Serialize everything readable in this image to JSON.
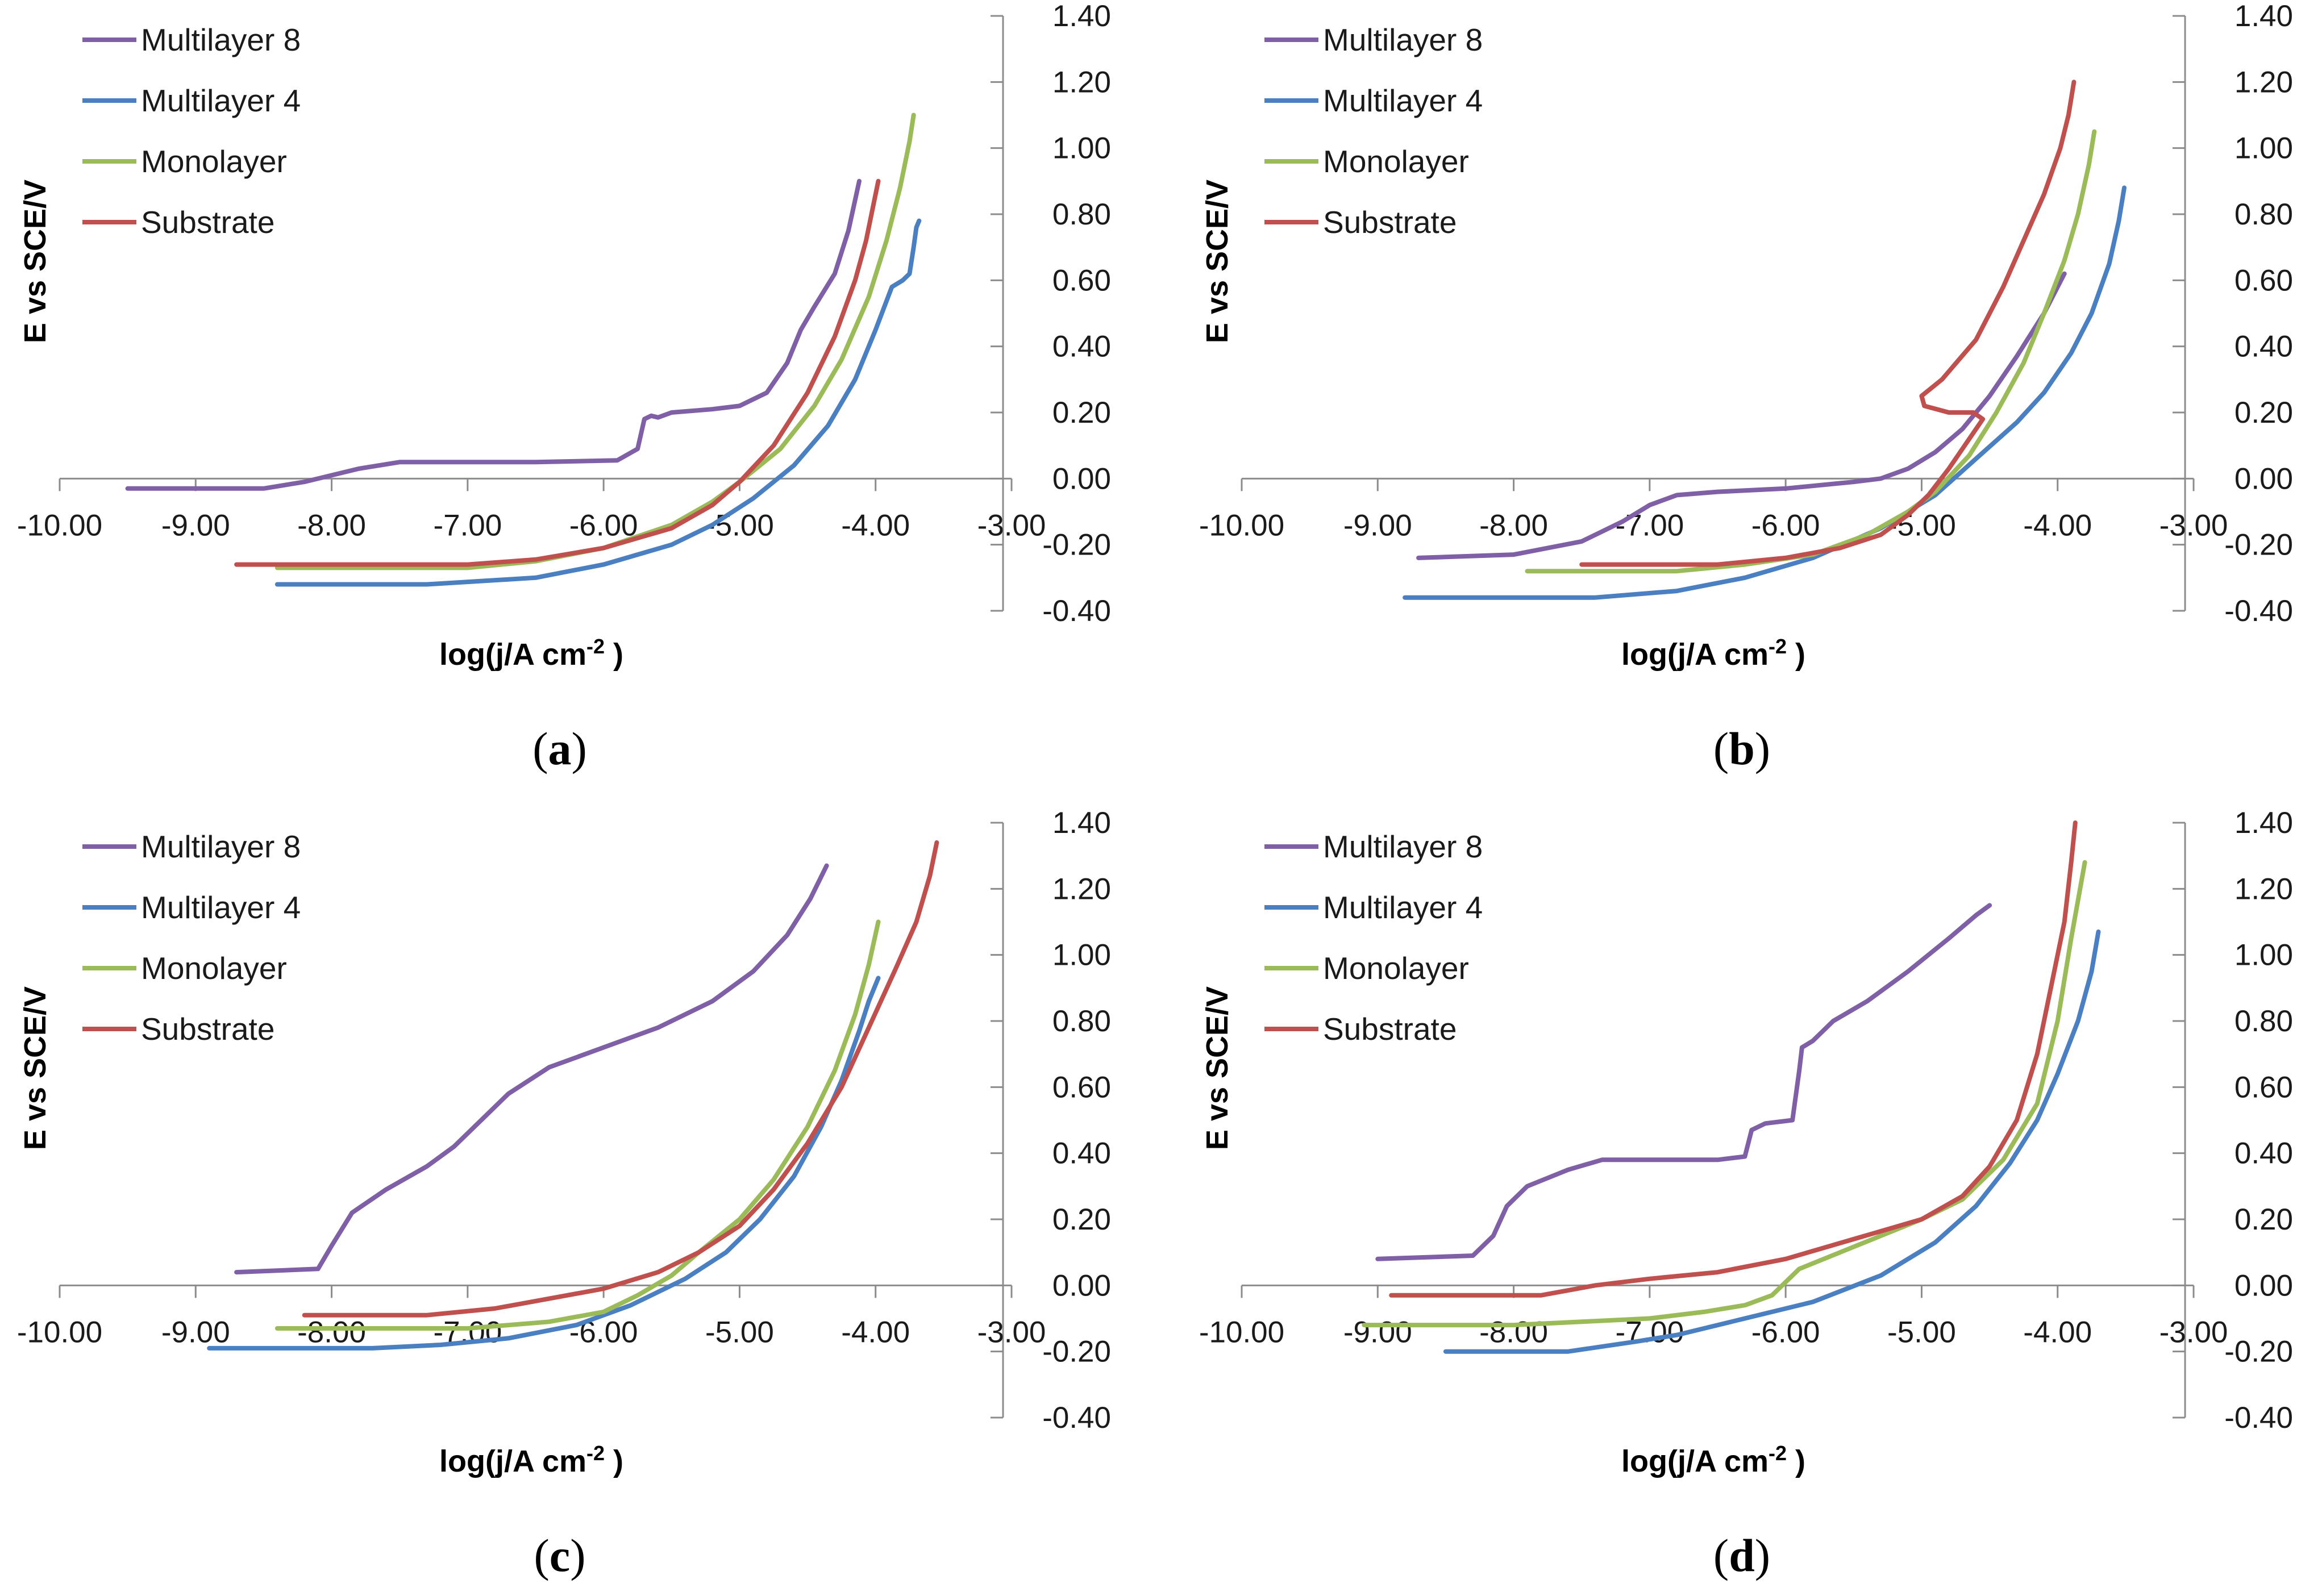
{
  "figure": {
    "series_names": [
      "Multilayer 8",
      "Multilayer 4",
      "Monolayer",
      "Substrate"
    ],
    "series_colors": {
      "Multilayer 8": "#7f5fa6",
      "Multilayer 4": "#4a7fc1",
      "Monolayer": "#9bbb59",
      "Substrate": "#c0504d"
    }
  },
  "chart_data": [
    {
      "type": "line",
      "panel_label": "a",
      "xlabel": "log(j/A cm",
      "xlabel_sup": "-2",
      "xlabel_close": " )",
      "ylabel": "E vs SCE/V",
      "xlim": [
        -10,
        -3
      ],
      "ylim": [
        -0.4,
        1.4
      ],
      "x_ticks": [
        "-10.00",
        "-9.00",
        "-8.00",
        "-7.00",
        "-6.00",
        "-5.00",
        "-4.00",
        "-3.00"
      ],
      "y_ticks": [
        "-0.40",
        "-0.20",
        "0.00",
        "0.20",
        "0.40",
        "0.60",
        "0.80",
        "1.00",
        "1.20",
        "1.40"
      ],
      "legend": [
        "Multilayer 8",
        "Multilayer 4",
        "Monolayer",
        "Substrate"
      ],
      "series": [
        {
          "name": "Multilayer 8",
          "x": [
            -9.5,
            -8.5,
            -8.2,
            -7.8,
            -7.5,
            -6.5,
            -5.9,
            -5.75,
            -5.7,
            -5.65,
            -5.6,
            -5.5,
            -5.2,
            -5.0,
            -4.8,
            -4.65,
            -4.55,
            -4.45,
            -4.3,
            -4.2,
            -4.12
          ],
          "y": [
            -0.03,
            -0.03,
            -0.01,
            0.03,
            0.05,
            0.05,
            0.055,
            0.09,
            0.18,
            0.19,
            0.185,
            0.2,
            0.21,
            0.22,
            0.26,
            0.35,
            0.45,
            0.52,
            0.62,
            0.75,
            0.9
          ]
        },
        {
          "name": "Multilayer 4",
          "x": [
            -8.4,
            -7.3,
            -6.5,
            -6.0,
            -5.5,
            -5.2,
            -4.9,
            -4.6,
            -4.35,
            -4.15,
            -4.0,
            -3.88,
            -3.8,
            -3.75,
            -3.72,
            -3.7,
            -3.68
          ],
          "y": [
            -0.32,
            -0.32,
            -0.3,
            -0.26,
            -0.2,
            -0.14,
            -0.06,
            0.04,
            0.16,
            0.3,
            0.45,
            0.58,
            0.6,
            0.62,
            0.7,
            0.76,
            0.78
          ]
        },
        {
          "name": "Monolayer",
          "x": [
            -8.4,
            -7.0,
            -6.5,
            -6.0,
            -5.5,
            -5.2,
            -5.0,
            -4.7,
            -4.45,
            -4.25,
            -4.05,
            -3.92,
            -3.82,
            -3.75,
            -3.72
          ],
          "y": [
            -0.27,
            -0.27,
            -0.25,
            -0.21,
            -0.14,
            -0.07,
            -0.01,
            0.09,
            0.22,
            0.36,
            0.55,
            0.72,
            0.88,
            1.02,
            1.1
          ]
        },
        {
          "name": "Substrate",
          "x": [
            -8.7,
            -7.0,
            -6.5,
            -6.0,
            -5.5,
            -5.2,
            -5.0,
            -4.75,
            -4.5,
            -4.3,
            -4.15,
            -4.07,
            -4.02,
            -3.98
          ],
          "y": [
            -0.26,
            -0.26,
            -0.245,
            -0.21,
            -0.15,
            -0.08,
            -0.01,
            0.1,
            0.26,
            0.43,
            0.6,
            0.72,
            0.82,
            0.9
          ]
        }
      ]
    },
    {
      "type": "line",
      "panel_label": "b",
      "xlabel": "log(j/A cm",
      "xlabel_sup": "-2",
      "xlabel_close": " )",
      "ylabel": "E vs SCE/V",
      "xlim": [
        -10,
        -3
      ],
      "ylim": [
        -0.4,
        1.4
      ],
      "x_ticks": [
        "-10.00",
        "-9.00",
        "-8.00",
        "-7.00",
        "-6.00",
        "-5.00",
        "-4.00",
        "-3.00"
      ],
      "y_ticks": [
        "-0.40",
        "-0.20",
        "0.00",
        "0.20",
        "0.40",
        "0.60",
        "0.80",
        "1.00",
        "1.20",
        "1.40"
      ],
      "legend": [
        "Multilayer 8",
        "Multilayer 4",
        "Monolayer",
        "Substrate"
      ],
      "series": [
        {
          "name": "Multilayer 8",
          "x": [
            -8.7,
            -8.0,
            -7.5,
            -7.2,
            -7.0,
            -6.8,
            -6.5,
            -6.0,
            -5.5,
            -5.3,
            -5.1,
            -4.9,
            -4.7,
            -4.5,
            -4.3,
            -4.1,
            -3.95
          ],
          "y": [
            -0.24,
            -0.23,
            -0.19,
            -0.13,
            -0.08,
            -0.05,
            -0.04,
            -0.03,
            -0.01,
            0.0,
            0.03,
            0.08,
            0.15,
            0.25,
            0.37,
            0.5,
            0.62
          ]
        },
        {
          "name": "Multilayer 4",
          "x": [
            -8.8,
            -7.4,
            -6.8,
            -6.3,
            -5.8,
            -5.3,
            -4.9,
            -4.6,
            -4.3,
            -4.1,
            -3.9,
            -3.75,
            -3.62,
            -3.55,
            -3.51
          ],
          "y": [
            -0.36,
            -0.36,
            -0.34,
            -0.3,
            -0.24,
            -0.15,
            -0.05,
            0.06,
            0.17,
            0.26,
            0.38,
            0.5,
            0.65,
            0.78,
            0.88
          ]
        },
        {
          "name": "Monolayer",
          "x": [
            -7.9,
            -6.8,
            -6.3,
            -5.8,
            -5.4,
            -5.1,
            -4.9,
            -4.65,
            -4.45,
            -4.25,
            -4.1,
            -3.95,
            -3.85,
            -3.77,
            -3.73
          ],
          "y": [
            -0.28,
            -0.28,
            -0.26,
            -0.23,
            -0.17,
            -0.1,
            -0.04,
            0.07,
            0.2,
            0.35,
            0.5,
            0.66,
            0.8,
            0.95,
            1.05
          ]
        },
        {
          "name": "Substrate",
          "x": [
            -7.5,
            -6.5,
            -6.0,
            -5.6,
            -5.3,
            -5.1,
            -4.95,
            -4.8,
            -4.65,
            -4.55,
            -4.62,
            -4.8,
            -4.98,
            -5.0,
            -4.85,
            -4.6,
            -4.4,
            -4.25,
            -4.1,
            -3.98,
            -3.92,
            -3.88
          ],
          "y": [
            -0.26,
            -0.26,
            -0.24,
            -0.21,
            -0.17,
            -0.11,
            -0.05,
            0.03,
            0.12,
            0.18,
            0.2,
            0.2,
            0.22,
            0.25,
            0.3,
            0.42,
            0.58,
            0.72,
            0.86,
            1.0,
            1.1,
            1.2
          ]
        }
      ]
    },
    {
      "type": "line",
      "panel_label": "c",
      "xlabel": "log(j/A cm",
      "xlabel_sup": "-2",
      "xlabel_close": " )",
      "ylabel": "E vs SCE/V",
      "xlim": [
        -10,
        -3
      ],
      "ylim": [
        -0.4,
        1.4
      ],
      "x_ticks": [
        "-10.00",
        "-9.00",
        "-8.00",
        "-7.00",
        "-6.00",
        "-5.00",
        "-4.00",
        "-3.00"
      ],
      "y_ticks": [
        "-0.40",
        "-0.20",
        "0.00",
        "0.20",
        "0.40",
        "0.60",
        "0.80",
        "1.00",
        "1.20",
        "1.40"
      ],
      "legend": [
        "Multilayer 8",
        "Multilayer 4",
        "Monolayer",
        "Substrate"
      ],
      "series": [
        {
          "name": "Multilayer 8",
          "x": [
            -8.7,
            -8.1,
            -8.0,
            -7.85,
            -7.6,
            -7.3,
            -7.1,
            -6.9,
            -6.7,
            -6.4,
            -6.0,
            -5.6,
            -5.2,
            -4.9,
            -4.65,
            -4.48,
            -4.36
          ],
          "y": [
            0.04,
            0.05,
            0.12,
            0.22,
            0.29,
            0.36,
            0.42,
            0.5,
            0.58,
            0.66,
            0.72,
            0.78,
            0.86,
            0.95,
            1.06,
            1.17,
            1.27
          ]
        },
        {
          "name": "Multilayer 4",
          "x": [
            -8.9,
            -7.7,
            -7.2,
            -6.7,
            -6.2,
            -5.8,
            -5.4,
            -5.1,
            -4.85,
            -4.6,
            -4.4,
            -4.25,
            -4.12,
            -4.05,
            -3.98
          ],
          "y": [
            -0.19,
            -0.19,
            -0.18,
            -0.16,
            -0.12,
            -0.06,
            0.02,
            0.1,
            0.2,
            0.33,
            0.48,
            0.62,
            0.77,
            0.86,
            0.93
          ]
        },
        {
          "name": "Monolayer",
          "x": [
            -8.4,
            -7.0,
            -6.4,
            -6.0,
            -5.75,
            -5.5,
            -5.3,
            -5.0,
            -4.75,
            -4.5,
            -4.3,
            -4.15,
            -4.05,
            -3.98
          ],
          "y": [
            -0.13,
            -0.13,
            -0.11,
            -0.08,
            -0.03,
            0.03,
            0.1,
            0.2,
            0.32,
            0.48,
            0.65,
            0.82,
            0.97,
            1.1
          ]
        },
        {
          "name": "Substrate",
          "x": [
            -8.2,
            -7.3,
            -6.8,
            -6.4,
            -6.0,
            -5.6,
            -5.3,
            -5.0,
            -4.75,
            -4.5,
            -4.25,
            -4.05,
            -3.85,
            -3.7,
            -3.6,
            -3.55
          ],
          "y": [
            -0.09,
            -0.09,
            -0.07,
            -0.04,
            -0.01,
            0.04,
            0.1,
            0.18,
            0.29,
            0.43,
            0.6,
            0.78,
            0.96,
            1.1,
            1.24,
            1.34
          ]
        }
      ]
    },
    {
      "type": "line",
      "panel_label": "d",
      "xlabel": "log(j/A cm",
      "xlabel_sup": "-2",
      "xlabel_close": " )",
      "ylabel": "E vs SCE/V",
      "xlim": [
        -10,
        -3
      ],
      "ylim": [
        -0.4,
        1.4
      ],
      "x_ticks": [
        "-10.00",
        "-9.00",
        "-8.00",
        "-7.00",
        "-6.00",
        "-5.00",
        "-4.00",
        "-3.00"
      ],
      "y_ticks": [
        "-0.40",
        "-0.20",
        "0.00",
        "0.20",
        "0.40",
        "0.60",
        "0.80",
        "1.00",
        "1.20",
        "1.40"
      ],
      "legend": [
        "Multilayer 8",
        "Multilayer 4",
        "Monolayer",
        "Substrate"
      ],
      "series": [
        {
          "name": "Multilayer 8",
          "x": [
            -9.0,
            -8.3,
            -8.15,
            -8.05,
            -7.9,
            -7.6,
            -7.35,
            -7.0,
            -6.5,
            -6.3,
            -6.25,
            -6.15,
            -5.95,
            -5.9,
            -5.88,
            -5.8,
            -5.65,
            -5.4,
            -5.1,
            -4.8,
            -4.6,
            -4.5
          ],
          "y": [
            0.08,
            0.09,
            0.15,
            0.24,
            0.3,
            0.35,
            0.38,
            0.38,
            0.38,
            0.39,
            0.47,
            0.49,
            0.5,
            0.65,
            0.72,
            0.74,
            0.8,
            0.86,
            0.95,
            1.05,
            1.12,
            1.15
          ]
        },
        {
          "name": "Multilayer 4",
          "x": [
            -8.5,
            -7.6,
            -7.1,
            -6.8,
            -6.3,
            -5.8,
            -5.3,
            -4.9,
            -4.6,
            -4.35,
            -4.15,
            -4.0,
            -3.85,
            -3.75,
            -3.7
          ],
          "y": [
            -0.2,
            -0.2,
            -0.17,
            -0.15,
            -0.1,
            -0.05,
            0.03,
            0.13,
            0.24,
            0.37,
            0.5,
            0.64,
            0.8,
            0.95,
            1.07
          ]
        },
        {
          "name": "Monolayer",
          "x": [
            -9.1,
            -8.0,
            -7.5,
            -7.0,
            -6.6,
            -6.3,
            -6.1,
            -5.9,
            -5.6,
            -5.3,
            -5.0,
            -4.7,
            -4.4,
            -4.15,
            -4.0,
            -3.9,
            -3.8
          ],
          "y": [
            -0.12,
            -0.12,
            -0.11,
            -0.1,
            -0.08,
            -0.06,
            -0.03,
            0.05,
            0.1,
            0.15,
            0.2,
            0.26,
            0.38,
            0.55,
            0.8,
            1.05,
            1.28
          ]
        },
        {
          "name": "Substrate",
          "x": [
            -8.9,
            -7.8,
            -7.4,
            -7.0,
            -6.5,
            -6.0,
            -5.5,
            -5.0,
            -4.7,
            -4.5,
            -4.3,
            -4.15,
            -4.05,
            -3.95,
            -3.9,
            -3.87
          ],
          "y": [
            -0.03,
            -0.03,
            0.0,
            0.02,
            0.04,
            0.08,
            0.14,
            0.2,
            0.27,
            0.36,
            0.5,
            0.7,
            0.9,
            1.1,
            1.28,
            1.4
          ]
        }
      ]
    }
  ]
}
